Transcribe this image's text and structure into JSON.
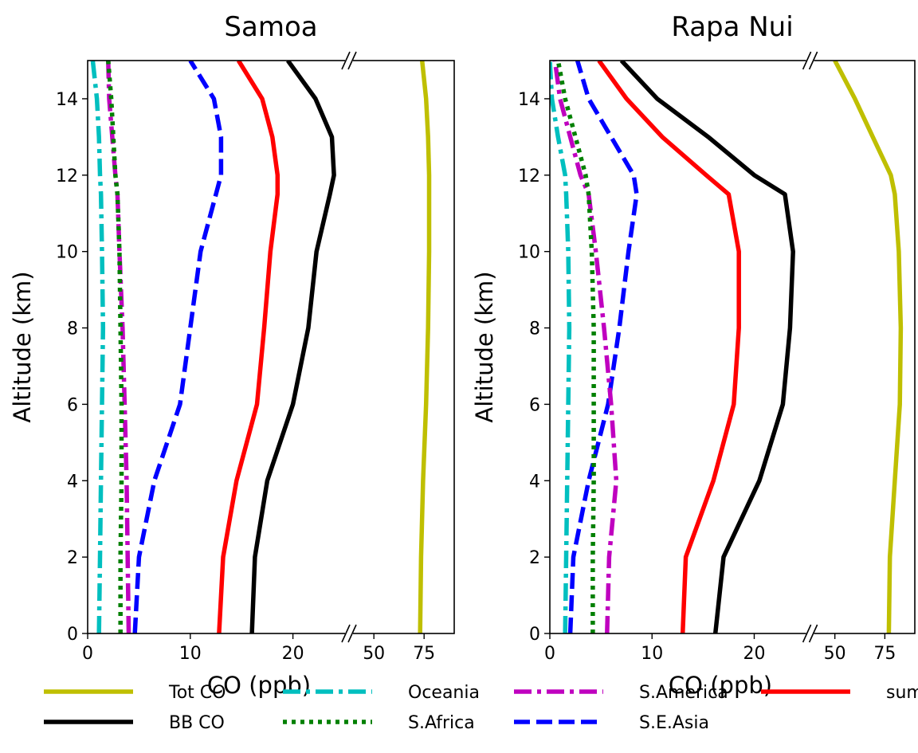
{
  "chart_data": [
    {
      "type": "line",
      "title": "Samoa",
      "xlabel": "CO (ppb)",
      "ylabel": "Altitude (km)",
      "xlim_low": [
        0,
        25
      ],
      "xlim_high": [
        40,
        90
      ],
      "ylim": [
        0,
        15
      ],
      "xticks": [
        0,
        10,
        20,
        50,
        75
      ],
      "yticks": [
        0,
        2,
        4,
        6,
        8,
        10,
        12,
        14
      ],
      "y": [
        0,
        2,
        4,
        6,
        8,
        10,
        11.5,
        12,
        13,
        14,
        15
      ],
      "series": [
        {
          "name": "Tot CO",
          "x": [
            73,
            73.5,
            74.5,
            76,
            77,
            77.5,
            77.5,
            77.5,
            77,
            76,
            74
          ]
        },
        {
          "name": "BB CO",
          "x": [
            16.0,
            16.3,
            17.5,
            20.0,
            21.5,
            22.3,
            23.6,
            24.0,
            23.8,
            22.2,
            19.5
          ]
        },
        {
          "name": "Oceania",
          "x": [
            1.1,
            1.2,
            1.3,
            1.4,
            1.5,
            1.4,
            1.3,
            1.2,
            1.1,
            0.9,
            0.5
          ]
        },
        {
          "name": "S.Africa",
          "x": [
            3.2,
            3.2,
            3.3,
            3.3,
            3.2,
            3.1,
            2.9,
            2.7,
            2.5,
            2.3,
            2.0
          ]
        },
        {
          "name": "S.America",
          "x": [
            4.0,
            3.9,
            3.8,
            3.6,
            3.4,
            3.1,
            2.9,
            2.7,
            2.4,
            2.1,
            2.0
          ]
        },
        {
          "name": "S.E.Asia",
          "x": [
            4.6,
            5.0,
            6.5,
            9.0,
            10.0,
            11.0,
            12.5,
            13.0,
            13.0,
            12.3,
            10.0
          ]
        },
        {
          "name": "sum",
          "x": [
            12.8,
            13.2,
            14.5,
            16.5,
            17.2,
            17.8,
            18.5,
            18.5,
            18.0,
            17.0,
            14.7
          ]
        }
      ]
    },
    {
      "type": "line",
      "title": "Rapa Nui",
      "xlabel": "CO (ppb)",
      "ylabel": "Altitude (km)",
      "xlim_low": [
        0,
        25
      ],
      "xlim_high": [
        40,
        90
      ],
      "ylim": [
        0,
        15
      ],
      "xticks": [
        0,
        10,
        20,
        50,
        75
      ],
      "yticks": [
        0,
        2,
        4,
        6,
        8,
        10,
        12,
        14
      ],
      "y": [
        0,
        2,
        4,
        6,
        8,
        10,
        11.5,
        12,
        13,
        14,
        15
      ],
      "series": [
        {
          "name": "Tot CO",
          "x": [
            77,
            77.5,
            80,
            82.5,
            83,
            82,
            80,
            78,
            69,
            60,
            50
          ]
        },
        {
          "name": "BB CO",
          "x": [
            16.2,
            17.0,
            20.5,
            22.8,
            23.5,
            23.8,
            23.0,
            20.0,
            15.5,
            10.5,
            7.0
          ]
        },
        {
          "name": "Oceania",
          "x": [
            1.5,
            1.6,
            1.7,
            1.8,
            1.9,
            1.8,
            1.6,
            1.5,
            0.8,
            0.2,
            0.0
          ]
        },
        {
          "name": "S.Africa",
          "x": [
            4.2,
            4.2,
            4.3,
            4.3,
            4.3,
            4.1,
            3.8,
            3.5,
            2.5,
            1.5,
            0.8
          ]
        },
        {
          "name": "S.America",
          "x": [
            5.6,
            5.8,
            6.5,
            6.0,
            5.3,
            4.5,
            3.8,
            3.0,
            2.0,
            1.0,
            0.5
          ]
        },
        {
          "name": "S.E.Asia",
          "x": [
            2.0,
            2.3,
            3.8,
            5.7,
            6.8,
            7.7,
            8.5,
            8.2,
            6.0,
            3.8,
            2.7
          ]
        },
        {
          "name": "sum",
          "x": [
            13.0,
            13.3,
            16.0,
            18.0,
            18.5,
            18.5,
            17.5,
            15.3,
            11.0,
            7.5,
            4.8
          ]
        }
      ]
    }
  ],
  "legend": {
    "placement": "bottom",
    "items": [
      {
        "label": "Tot CO",
        "color": "#bfbf00",
        "style": "solid"
      },
      {
        "label": "BB CO",
        "color": "#000000",
        "style": "solid"
      },
      {
        "label": "Oceania",
        "color": "#00bfbf",
        "style": "dashdot"
      },
      {
        "label": "S.Africa",
        "color": "#008000",
        "style": "dotted"
      },
      {
        "label": "S.America",
        "color": "#bf00bf",
        "style": "dashdot"
      },
      {
        "label": "S.E.Asia",
        "color": "#0000ff",
        "style": "dashed"
      },
      {
        "label": "sum",
        "color": "#ff0000",
        "style": "solid"
      }
    ]
  }
}
